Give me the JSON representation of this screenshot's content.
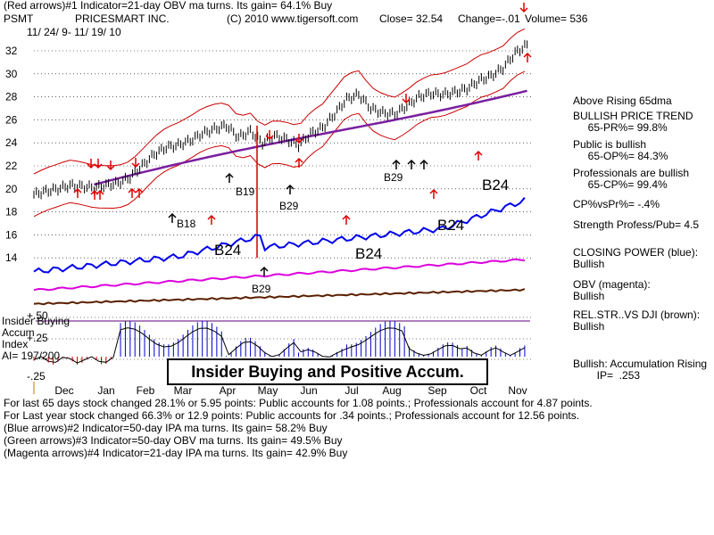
{
  "header": {
    "line1": "(Red arrows)#1 Indicator=21-day OBV ma turns. Its gain= 64.1% Buy",
    "ticker": "PSMT",
    "company": "PRICESMART INC.",
    "copyright": "(C) 2010 www.tigersoft.com",
    "close": "Close=  32.54",
    "change": "Change=-.01",
    "volume": "Volume= 536",
    "daterange": "11/ 24/ 9- 11/ 19/ 10"
  },
  "side_panel": [
    "Above Rising 65dma",
    "BULLISH PRICE TREND",
    "     65-PR%= 99.8%",
    "Public is bullish",
    "     65-OP%= 84.3%",
    "Professionals are bullish",
    "     65-CP%= 99.4%",
    "CP%vsPr%= -.4%",
    "Strength Profess/Pub= 4.5",
    "CLOSING POWER (blue):",
    "Bullish",
    "OBV (magenta):",
    "Bullish",
    "REL.STR..VS DJI (brown):",
    "Bullish",
    "Bullish: Accumulation Rising",
    "        IP=  .253"
  ],
  "insider": {
    "title": "Insider Buying",
    "accum": "Accum",
    "index": "Index",
    "ai": "AI= 197/200",
    "banner": "Insider Buying and Positive Accum."
  },
  "bottom_lines": [
    "For last 65 days stock changed  28.1% or  5.95 points:  Public accounts for  1.08 points.;  Professionals account for  4.87 points.",
    " For Last year stock changed  66.3% or  12.9 points:  Public accounts for  .34 points.;  Professionals account for  12.56 points.",
    " (Blue arrows)#2 Indicator=50-day IPA ma turns. Its gain= 58.2% Buy",
    " (Green arrows)#3 Indicator=50-day OBV ma turns. Its gain= 49.5% Buy",
    "(Magenta arrows)#4 Indicator=21-day IPA ma turns. Its gain= 42.9% Buy"
  ],
  "colors": {
    "price": "#000000",
    "bands": "#cc0000",
    "ma65": "#7a1fa0",
    "closing_power": "#0000ee",
    "obv": "#dd00dd",
    "relstr": "#5a1f00",
    "grid": "#000000",
    "arrow_red": "#dd0000",
    "arrow_black": "#000000",
    "accum_pos": "#0000cc",
    "accum_neg": "#cc0000"
  },
  "chart_data": {
    "type": "line",
    "xlabels": [
      "Dec",
      "Jan",
      "Feb",
      "Mar",
      "Apr",
      "May",
      "Jun",
      "Jul",
      "Aug",
      "Sep",
      "Oct",
      "Nov"
    ],
    "yticks": [
      14,
      16,
      18,
      20,
      22,
      24,
      26,
      28,
      30,
      32
    ],
    "accum_ticks": [
      "+.50",
      "+.25",
      "-.25"
    ],
    "ylim": [
      13,
      33
    ],
    "price_series": {
      "name": "Price",
      "points": [
        [
          0,
          19.5
        ],
        [
          5,
          19.8
        ],
        [
          10,
          20.0
        ],
        [
          15,
          20.3
        ],
        [
          20,
          20.2
        ],
        [
          25,
          20.1
        ],
        [
          30,
          20.3
        ],
        [
          35,
          20.5
        ],
        [
          40,
          21.0
        ],
        [
          45,
          22.0
        ],
        [
          50,
          23.0
        ],
        [
          55,
          23.6
        ],
        [
          60,
          23.8
        ],
        [
          65,
          24.2
        ],
        [
          70,
          24.8
        ],
        [
          75,
          25.2
        ],
        [
          80,
          25.5
        ],
        [
          85,
          24.5
        ],
        [
          90,
          25.0
        ],
        [
          95,
          24.0
        ],
        [
          100,
          24.6
        ],
        [
          105,
          24.3
        ],
        [
          110,
          23.8
        ],
        [
          115,
          24.8
        ],
        [
          120,
          25.3
        ],
        [
          125,
          26.5
        ],
        [
          130,
          27.8
        ],
        [
          135,
          28.2
        ],
        [
          140,
          27.0
        ],
        [
          145,
          26.6
        ],
        [
          150,
          26.5
        ],
        [
          155,
          27.2
        ],
        [
          160,
          28.0
        ],
        [
          165,
          28.3
        ],
        [
          170,
          28.2
        ],
        [
          175,
          28.4
        ],
        [
          180,
          28.7
        ],
        [
          185,
          29.4
        ],
        [
          190,
          29.8
        ],
        [
          195,
          30.5
        ],
        [
          200,
          31.8
        ],
        [
          205,
          32.5
        ]
      ]
    },
    "annotations": [
      {
        "text": "B19",
        "x": 90,
        "y": 19.5
      },
      {
        "text": "B18",
        "x": 55,
        "y": 16.5
      },
      {
        "text": "B29",
        "x": 108,
        "y": 18.8
      },
      {
        "text": "B29",
        "x": 148,
        "y": 20.5
      },
      {
        "text": "B29",
        "x": 98,
        "y": 12.3
      },
      {
        "text": "B24",
        "x": 70,
        "y": 14.0
      },
      {
        "text": "B24",
        "x": 138,
        "y": 13.8
      },
      {
        "text": "B24",
        "x": 173,
        "y": 16.2
      },
      {
        "text": "B24",
        "x": 188,
        "y": 19.8
      }
    ]
  }
}
